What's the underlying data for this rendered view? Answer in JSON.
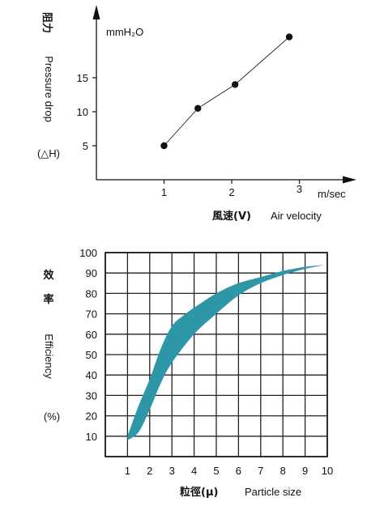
{
  "chart_data": [
    {
      "type": "line",
      "ylabel_cn": "阻力",
      "ylabel_en": "Pressure drop",
      "ylabel_sym": "(△H)",
      "unit": "mmH₂O",
      "xlabel_cn": "風速(V)",
      "xlabel_en": "Air velocity",
      "xunit": "m/sec",
      "x_ticks": [
        "1",
        "2",
        "3"
      ],
      "y_ticks": [
        "5",
        "10",
        "15"
      ],
      "x": [
        1.0,
        1.5,
        2.05,
        2.85
      ],
      "y": [
        5,
        10.5,
        14,
        21
      ],
      "xlim": [
        0,
        3.7
      ],
      "ylim": [
        0,
        25
      ]
    },
    {
      "type": "area",
      "ylabel_cn_1": "效",
      "ylabel_cn_2": "率",
      "ylabel_en": "Efficiency",
      "ylabel_unit": "(%)",
      "xlabel_cn": "粒徑(μ)",
      "xlabel_en": "Particle size",
      "x_ticks": [
        "1",
        "2",
        "3",
        "4",
        "5",
        "6",
        "7",
        "8",
        "9",
        "10"
      ],
      "y_ticks": [
        "10",
        "20",
        "30",
        "40",
        "50",
        "60",
        "70",
        "80",
        "90",
        "100"
      ],
      "band_color": "#2e97a7",
      "upper": {
        "x": [
          1,
          1.5,
          2,
          2.5,
          3,
          3.5,
          4,
          5,
          6,
          7,
          8,
          9,
          9.9
        ],
        "y": [
          10,
          25,
          38,
          53,
          64,
          69,
          73,
          80,
          85,
          88,
          91,
          93,
          94
        ]
      },
      "lower": {
        "x": [
          1,
          1.5,
          2,
          2.5,
          3,
          4,
          5,
          6,
          7,
          8,
          9,
          9.9
        ],
        "y": [
          8,
          12,
          23,
          36,
          46,
          60,
          70,
          79,
          85,
          89,
          92,
          94
        ]
      },
      "xlim": [
        0,
        10
      ],
      "ylim": [
        0,
        100
      ],
      "grid": true
    }
  ]
}
